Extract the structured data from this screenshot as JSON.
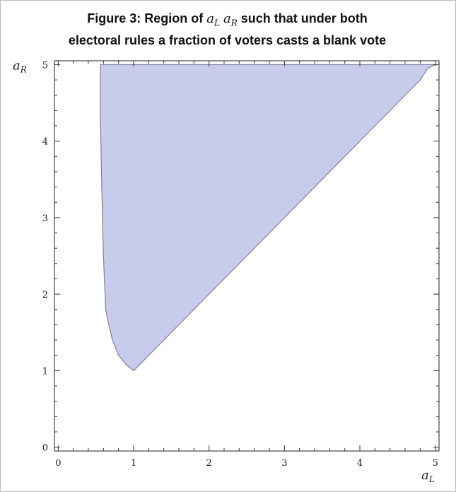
{
  "chart_data": {
    "type": "area",
    "title": {
      "line1_prefix": "Figure 3: Region of",
      "line1_suffix": "such that under both",
      "line2": "electoral rules a fraction of voters casts a blank vote"
    },
    "title_math": {
      "var1_base": "a",
      "var1_sub": "L",
      "var2_base": "a",
      "var2_sub": "R"
    },
    "xlabel": {
      "base": "a",
      "sub": "L"
    },
    "ylabel": {
      "base": "a",
      "sub": "R"
    },
    "xlim": [
      -0.05,
      5.05
    ],
    "ylim": [
      -0.05,
      5.05
    ],
    "x_ticks": [
      0,
      1,
      2,
      3,
      4,
      5
    ],
    "y_ticks": [
      0,
      1,
      2,
      3,
      4,
      5
    ],
    "x_tick_labels": [
      "0",
      "1",
      "2",
      "3",
      "4",
      "5"
    ],
    "y_tick_labels": [
      "0",
      "1",
      "2",
      "3",
      "4",
      "5"
    ],
    "minor_ticks_per_unit": 5,
    "grid": false,
    "region": {
      "fill": "#c9cbea",
      "stroke": "#7f7f9a",
      "boundary": [
        [
          1.0,
          1.0
        ],
        [
          0.9,
          1.08
        ],
        [
          0.8,
          1.2
        ],
        [
          0.72,
          1.4
        ],
        [
          0.66,
          1.65
        ],
        [
          0.63,
          1.8
        ],
        [
          0.6,
          2.5
        ],
        [
          0.575,
          3.5
        ],
        [
          0.56,
          4.3
        ],
        [
          0.56,
          5.0
        ],
        [
          5.0,
          5.0
        ],
        [
          4.9,
          4.95
        ],
        [
          4.8,
          4.8
        ],
        [
          1.0,
          1.0
        ]
      ]
    }
  }
}
